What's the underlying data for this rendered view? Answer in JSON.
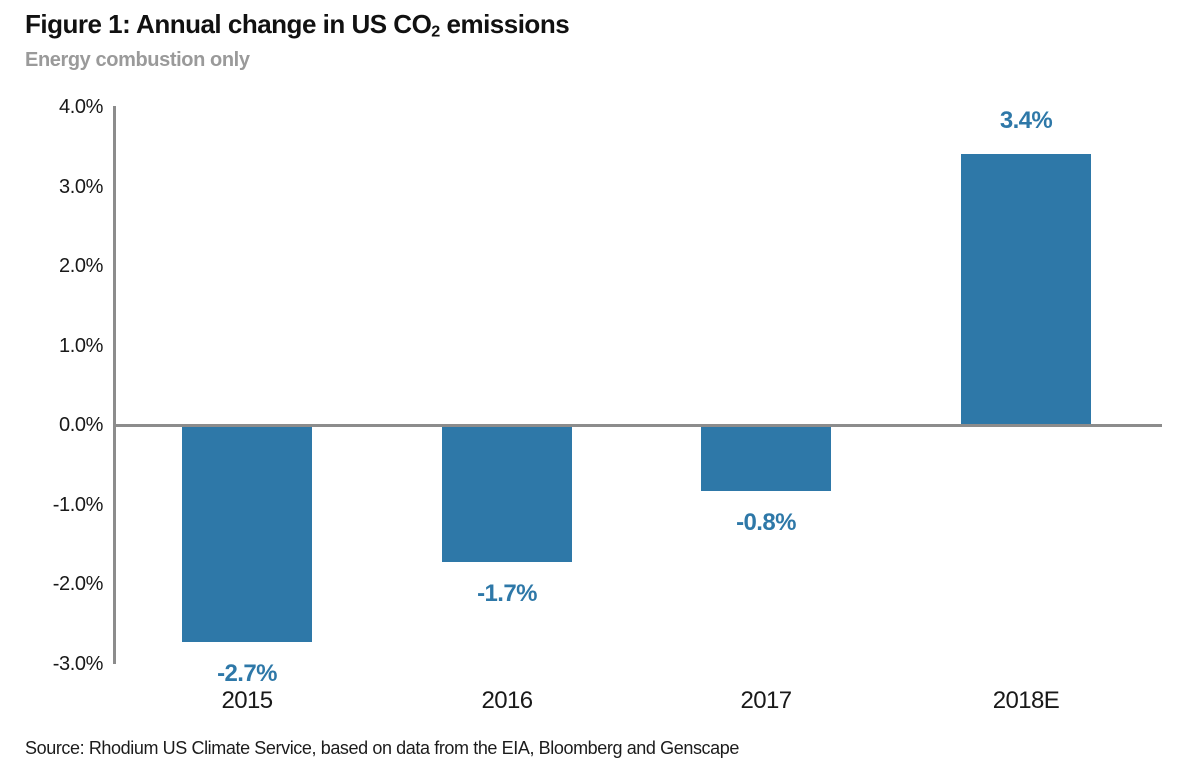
{
  "header": {
    "title_prefix": "Figure 1: Annual change in US CO",
    "title_sub": "2",
    "title_suffix": " emissions",
    "subtitle": "Energy combustion only"
  },
  "footer": {
    "source": "Source: Rhodium US Climate Service, based on data from the EIA, Bloomberg and Genscape"
  },
  "chart_data": {
    "type": "bar",
    "title": "Figure 1: Annual change in US CO2 emissions",
    "subtitle": "Energy combustion only",
    "categories": [
      "2015",
      "2016",
      "2017",
      "2018E"
    ],
    "values": [
      -2.7,
      -1.7,
      -0.8,
      3.4
    ],
    "value_labels": [
      "-2.7%",
      "-1.7%",
      "-0.8%",
      "3.4%"
    ],
    "y_ticks": [
      4.0,
      3.0,
      2.0,
      1.0,
      0.0,
      -1.0,
      -2.0,
      -3.0
    ],
    "y_tick_labels": [
      "4.0%",
      "3.0%",
      "2.0%",
      "1.0%",
      "0.0%",
      "-1.0%",
      "-2.0%",
      "-3.0%"
    ],
    "ylim": [
      -3.0,
      4.0
    ],
    "xlabel": "",
    "ylabel": "",
    "grid": false,
    "legend": false,
    "bar_color": "#2e78a8",
    "value_label_color": "#2e78a8",
    "axis_color": "#8c8c8c",
    "source": "Source: Rhodium US Climate Service, based on data from the EIA, Bloomberg and Genscape"
  }
}
